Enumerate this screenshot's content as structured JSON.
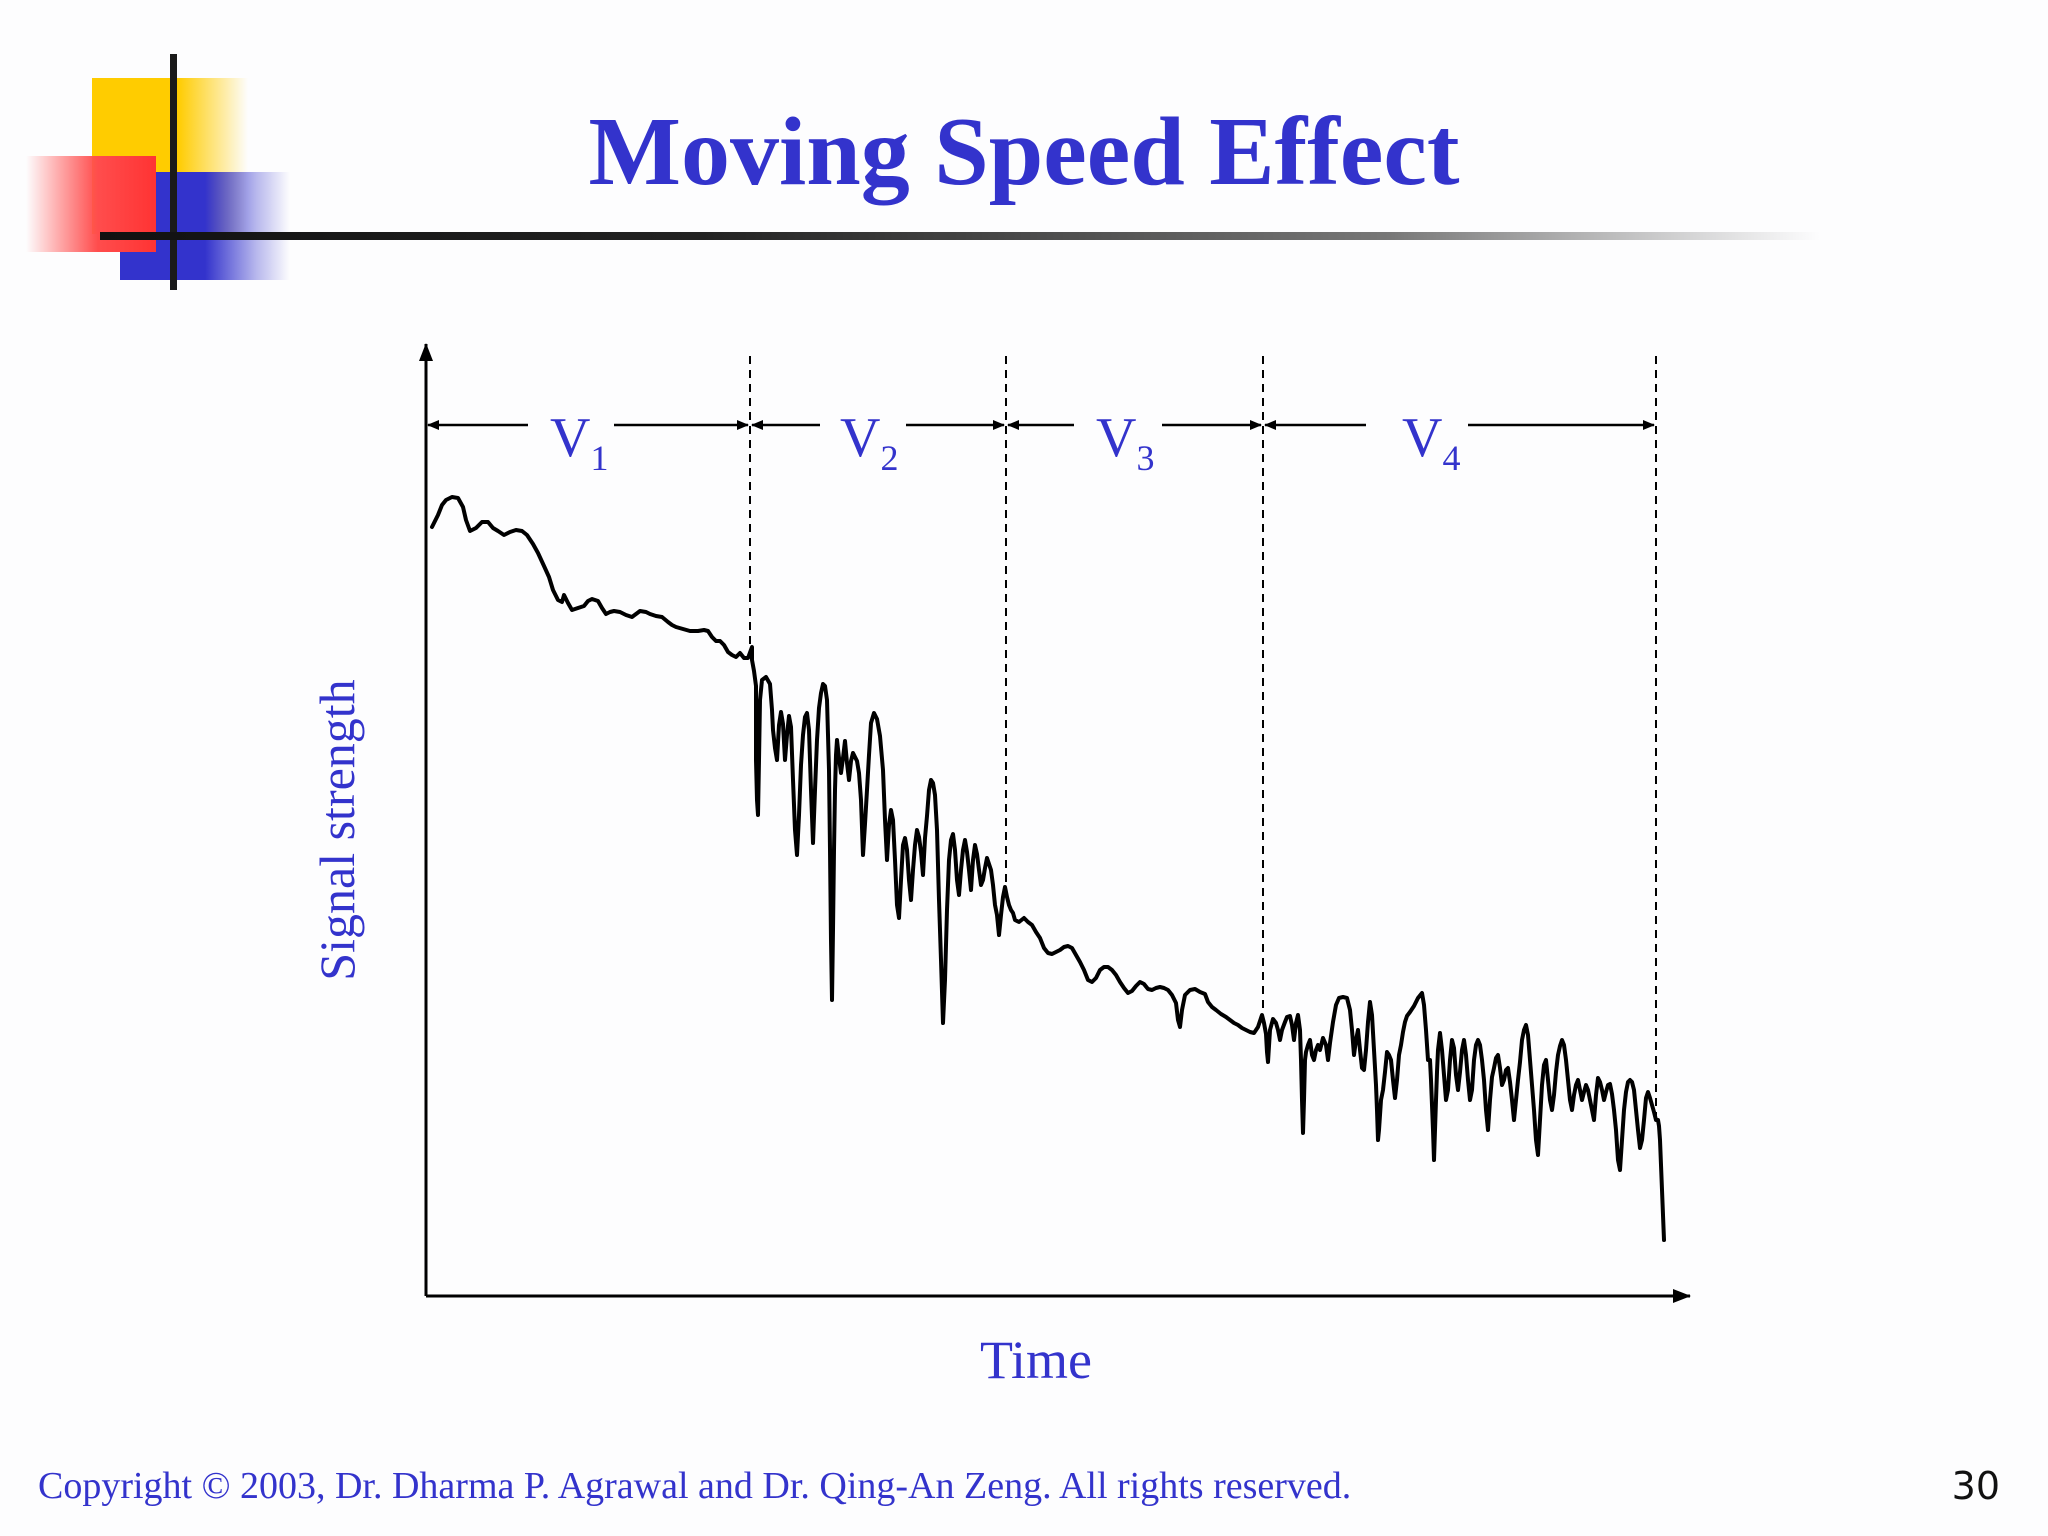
{
  "slide": {
    "title": "Moving Speed Effect",
    "footer": "Copyright © 2003, Dr. Dharma P. Agrawal and Dr. Qing-An Zeng. All rights reserved.",
    "page_number": "30"
  },
  "diagram": {
    "y_axis_label": "Signal strength",
    "x_axis_label": "Time",
    "regions": [
      {
        "base": "V",
        "sub": "1"
      },
      {
        "base": "V",
        "sub": "2"
      },
      {
        "base": "V",
        "sub": "3"
      },
      {
        "base": "V",
        "sub": "4"
      }
    ]
  },
  "colors": {
    "accent": "#3333cc",
    "line": "#000000"
  }
}
